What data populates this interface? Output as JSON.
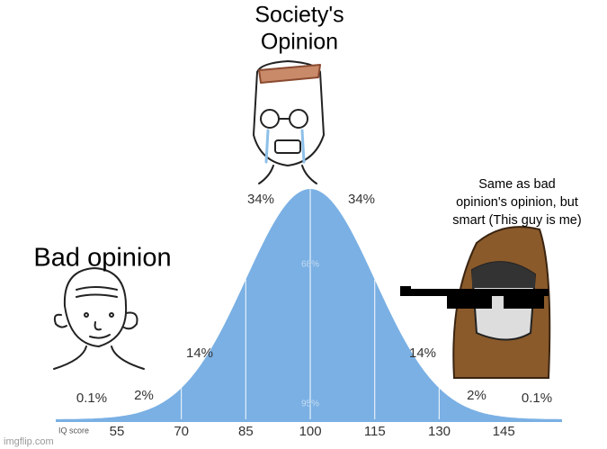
{
  "captions": {
    "top": [
      "Society's",
      "Opinion"
    ],
    "left": "Bad opinion",
    "right": [
      "Same as bad",
      "opinion's opinion, but",
      "smart (This guy is me)"
    ]
  },
  "curve": {
    "axis_label": "IQ score",
    "ticks": [
      "55",
      "70",
      "85",
      "100",
      "115",
      "130",
      "145"
    ],
    "percent_labels": [
      "0.1%",
      "2%",
      "14%",
      "34%",
      "34%",
      "14%",
      "2%",
      "0.1%"
    ],
    "inner_labels": [
      "68%",
      "95%"
    ]
  },
  "watermark": "imgflip.com"
}
